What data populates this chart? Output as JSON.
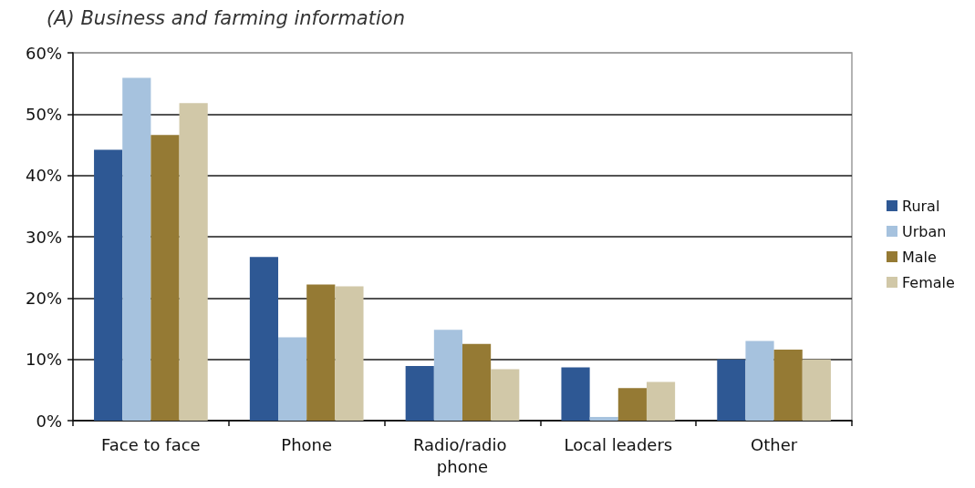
{
  "chart_data": {
    "type": "bar",
    "title": "(A) Business and farming information",
    "categories": [
      "Face to face",
      "Phone",
      "Radio/radio phone",
      "Local leaders",
      "Other"
    ],
    "series": [
      {
        "name": "Rural",
        "color": "#2e5894",
        "values": [
          44.2,
          26.7,
          8.9,
          8.7,
          10.0
        ]
      },
      {
        "name": "Urban",
        "color": "#a6c2de",
        "values": [
          55.9,
          13.6,
          14.8,
          0.6,
          13.0
        ]
      },
      {
        "name": "Male",
        "color": "#957a34",
        "values": [
          46.6,
          22.2,
          12.5,
          5.3,
          11.6
        ]
      },
      {
        "name": "Female",
        "color": "#d1c8a8",
        "values": [
          51.8,
          21.9,
          8.4,
          6.3,
          10.0
        ]
      }
    ],
    "ylim": [
      0,
      60
    ],
    "yticks": [
      {
        "value": 0,
        "label": "0%"
      },
      {
        "value": 10,
        "label": "10%"
      },
      {
        "value": 20,
        "label": "20%"
      },
      {
        "value": 30,
        "label": "30%"
      },
      {
        "value": 40,
        "label": "40%"
      },
      {
        "value": 50,
        "label": "50%"
      },
      {
        "value": 60,
        "label": "60%"
      }
    ],
    "grid": "y",
    "legend": "right"
  }
}
